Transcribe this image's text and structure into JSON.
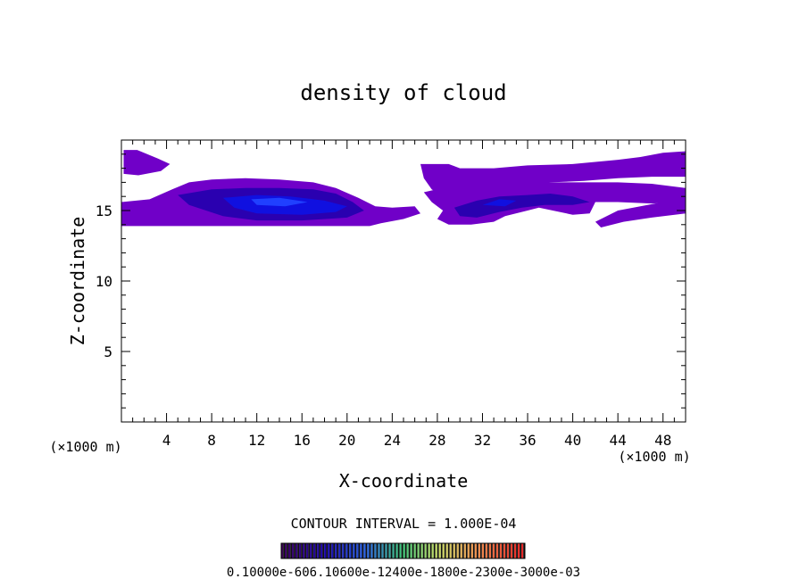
{
  "chart_data": {
    "type": "heatmap",
    "title": "density of cloud",
    "xlabel": "X-coordinate",
    "ylabel": "Z-coordinate",
    "x_unit_left": "(×1000 m)",
    "x_unit_right": "(×1000 m)",
    "xlim": [
      0,
      50
    ],
    "ylim": [
      0,
      20
    ],
    "x_ticks": [
      4,
      8,
      12,
      16,
      20,
      24,
      28,
      32,
      36,
      40,
      44,
      48
    ],
    "y_ticks": [
      5,
      10,
      15
    ],
    "contour_interval_label": "CONTOUR INTERVAL = 1.000E-04",
    "colorbar_labels_text": "0.10000e-606.10600e-12400e-1800e-2300e-3000e-03",
    "colorbar_range": [
      0.0,
      0.0003
    ],
    "colors": {
      "background": "#ffffff",
      "low": "#7000c8",
      "mid": "#2a00b0",
      "high": "#1010e0",
      "core": "#2040ff"
    },
    "regions": [
      {
        "name": "upper-left-patch",
        "level": 1,
        "points": [
          [
            0.2,
            19.3
          ],
          [
            1.4,
            19.3
          ],
          [
            3.2,
            18.7
          ],
          [
            4.3,
            18.3
          ],
          [
            3.5,
            17.8
          ],
          [
            1.5,
            17.5
          ],
          [
            0.2,
            17.6
          ]
        ]
      },
      {
        "name": "main-left-band",
        "level": 1,
        "points": [
          [
            0,
            15.6
          ],
          [
            2.5,
            15.8
          ],
          [
            4.5,
            16.5
          ],
          [
            6,
            17.0
          ],
          [
            8,
            17.2
          ],
          [
            11,
            17.3
          ],
          [
            14,
            17.2
          ],
          [
            17,
            17.0
          ],
          [
            19,
            16.6
          ],
          [
            21,
            15.9
          ],
          [
            22.5,
            15.3
          ],
          [
            24,
            15.2
          ],
          [
            26,
            15.3
          ],
          [
            26.5,
            14.8
          ],
          [
            25,
            14.4
          ],
          [
            23,
            14.1
          ],
          [
            22,
            13.9
          ],
          [
            0,
            13.9
          ]
        ]
      },
      {
        "name": "main-left-core-outer",
        "level": 2,
        "points": [
          [
            5,
            16.1
          ],
          [
            8,
            16.5
          ],
          [
            11,
            16.6
          ],
          [
            14,
            16.6
          ],
          [
            17,
            16.5
          ],
          [
            19,
            16.2
          ],
          [
            20.5,
            15.6
          ],
          [
            21.5,
            15.0
          ],
          [
            20,
            14.5
          ],
          [
            16,
            14.3
          ],
          [
            12,
            14.3
          ],
          [
            9,
            14.6
          ],
          [
            6,
            15.4
          ]
        ]
      },
      {
        "name": "main-left-core-inner",
        "level": 3,
        "points": [
          [
            9,
            15.9
          ],
          [
            12,
            16.1
          ],
          [
            15,
            16.0
          ],
          [
            18,
            15.7
          ],
          [
            20,
            15.3
          ],
          [
            19,
            14.9
          ],
          [
            16,
            14.7
          ],
          [
            12,
            14.8
          ],
          [
            10,
            15.2
          ]
        ]
      },
      {
        "name": "main-left-core-peak",
        "level": 4,
        "points": [
          [
            11.5,
            15.8
          ],
          [
            14,
            15.9
          ],
          [
            16.5,
            15.6
          ],
          [
            14.5,
            15.3
          ],
          [
            12,
            15.4
          ]
        ]
      },
      {
        "name": "right-upper-band",
        "level": 1,
        "points": [
          [
            26.5,
            18.3
          ],
          [
            29,
            18.3
          ],
          [
            30,
            18.0
          ],
          [
            33,
            18.0
          ],
          [
            36,
            18.2
          ],
          [
            40,
            18.3
          ],
          [
            44,
            18.6
          ],
          [
            46,
            18.8
          ],
          [
            48,
            19.1
          ],
          [
            50,
            19.2
          ],
          [
            50,
            17.4
          ],
          [
            47,
            17.4
          ],
          [
            44,
            17.3
          ],
          [
            41,
            17.1
          ],
          [
            38,
            17.0
          ],
          [
            35,
            16.8
          ],
          [
            32,
            16.5
          ],
          [
            30,
            16.2
          ],
          [
            28.5,
            16.0
          ],
          [
            27.5,
            16.5
          ],
          [
            26.8,
            17.3
          ]
        ]
      },
      {
        "name": "right-middle-band",
        "level": 1,
        "points": [
          [
            26.8,
            16.3
          ],
          [
            29,
            16.7
          ],
          [
            31,
            17.1
          ],
          [
            33,
            17.2
          ],
          [
            35,
            17.1
          ],
          [
            38,
            17.0
          ],
          [
            41,
            17.0
          ],
          [
            44,
            17.0
          ],
          [
            47,
            16.9
          ],
          [
            50,
            16.6
          ],
          [
            50,
            15.6
          ],
          [
            47,
            15.5
          ],
          [
            44,
            15.6
          ],
          [
            42,
            15.6
          ],
          [
            41.5,
            14.8
          ],
          [
            40,
            14.7
          ],
          [
            37,
            15.2
          ],
          [
            36,
            15.0
          ],
          [
            34,
            14.6
          ],
          [
            33,
            14.2
          ],
          [
            31,
            14.0
          ],
          [
            29,
            14.0
          ],
          [
            28,
            14.4
          ],
          [
            28.5,
            15.0
          ],
          [
            27.5,
            15.6
          ]
        ]
      },
      {
        "name": "right-middle-core",
        "level": 2,
        "points": [
          [
            29.5,
            15.2
          ],
          [
            31.5,
            15.7
          ],
          [
            33.5,
            16.0
          ],
          [
            36,
            16.1
          ],
          [
            38,
            16.2
          ],
          [
            40,
            16.0
          ],
          [
            41.5,
            15.6
          ],
          [
            40,
            15.4
          ],
          [
            37.5,
            15.4
          ],
          [
            35.5,
            15.2
          ],
          [
            33.5,
            14.9
          ],
          [
            31.5,
            14.5
          ],
          [
            30,
            14.6
          ]
        ]
      },
      {
        "name": "right-middle-peak",
        "level": 3,
        "points": [
          [
            32,
            15.4
          ],
          [
            33.5,
            15.8
          ],
          [
            35,
            15.7
          ],
          [
            34,
            15.3
          ]
        ]
      },
      {
        "name": "right-lower-band",
        "level": 1,
        "points": [
          [
            42,
            14.2
          ],
          [
            44,
            15.0
          ],
          [
            46,
            15.3
          ],
          [
            48,
            15.6
          ],
          [
            50,
            15.6
          ],
          [
            50,
            14.8
          ],
          [
            47,
            14.5
          ],
          [
            44.5,
            14.2
          ],
          [
            42.5,
            13.8
          ]
        ]
      }
    ]
  }
}
